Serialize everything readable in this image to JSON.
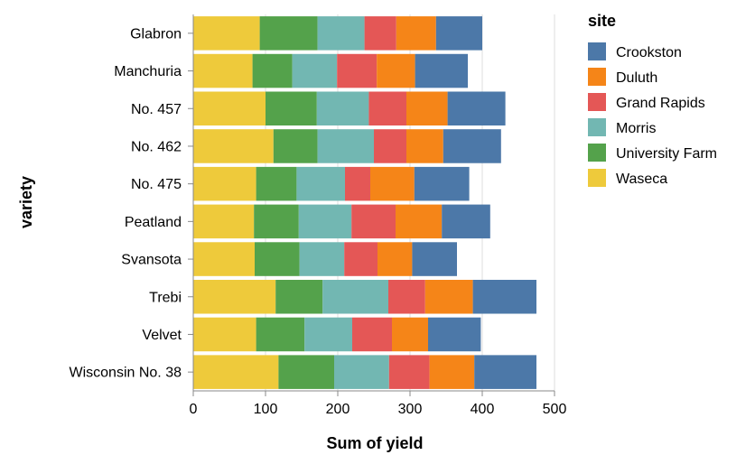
{
  "chart_data": {
    "type": "bar",
    "orientation": "horizontal",
    "stacked": true,
    "xlabel": "Sum of yield",
    "ylabel": "variety",
    "xlim": [
      0,
      500
    ],
    "xticks": [
      0,
      100,
      200,
      300,
      400,
      500
    ],
    "grid": true,
    "legend": {
      "title": "site",
      "placement": "right"
    },
    "categories": [
      "Glabron",
      "Manchuria",
      "No. 457",
      "No. 462",
      "No. 475",
      "Peatland",
      "Svansota",
      "Trebi",
      "Velvet",
      "Wisconsin No. 38"
    ],
    "series": [
      {
        "name": "Waseca",
        "color": "#eeca3b",
        "values": [
          92,
          82,
          100,
          111,
          87,
          84,
          85,
          114,
          87,
          118
        ]
      },
      {
        "name": "University Farm",
        "color": "#54a24b",
        "values": [
          80,
          55,
          71,
          61,
          56,
          62,
          62,
          65,
          67,
          77
        ]
      },
      {
        "name": "Morris",
        "color": "#72b7b2",
        "values": [
          65,
          62,
          72,
          78,
          67,
          73,
          62,
          91,
          66,
          76
        ]
      },
      {
        "name": "Grand Rapids",
        "color": "#e45756",
        "values": [
          44,
          55,
          52,
          45,
          35,
          61,
          46,
          51,
          55,
          56
        ]
      },
      {
        "name": "Duluth",
        "color": "#f58518",
        "values": [
          55,
          53,
          57,
          51,
          61,
          64,
          48,
          66,
          50,
          62
        ]
      },
      {
        "name": "Crookston",
        "color": "#4c78a8",
        "values": [
          64,
          73,
          80,
          80,
          76,
          67,
          62,
          88,
          73,
          86
        ]
      }
    ],
    "legend_order": [
      "Crookston",
      "Duluth",
      "Grand Rapids",
      "Morris",
      "University Farm",
      "Waseca"
    ]
  }
}
